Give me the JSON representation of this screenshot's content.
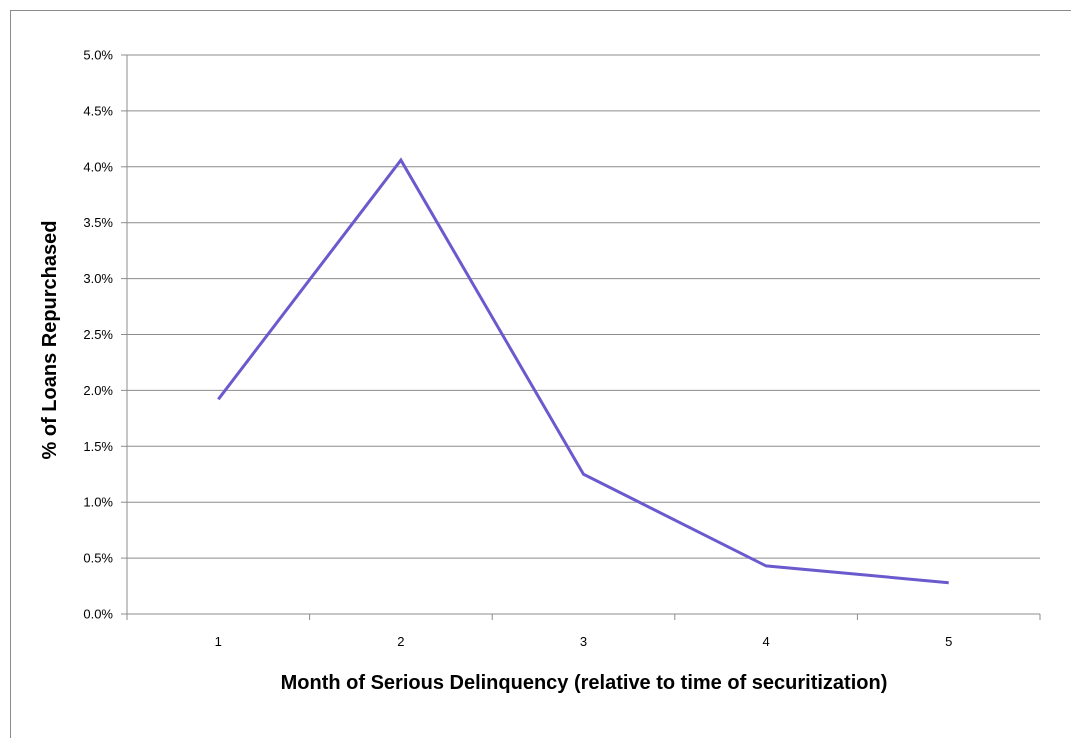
{
  "chart_data": {
    "type": "line",
    "title": "",
    "xlabel": "Month of Serious Delinquency (relative to time of securitization)",
    "ylabel": "% of Loans Repurchased",
    "categories": [
      "1",
      "2",
      "3",
      "4",
      "5"
    ],
    "series": [
      {
        "values": [
          1.92,
          4.06,
          1.25,
          0.43,
          0.28
        ]
      }
    ],
    "ylim": [
      0,
      5.0
    ],
    "yticks": [
      "0.0%",
      "0.5%",
      "1.0%",
      "1.5%",
      "2.0%",
      "2.5%",
      "3.0%",
      "3.5%",
      "4.0%",
      "4.5%",
      "5.0%"
    ],
    "grid": true,
    "legend": "none",
    "colors": {
      "line": "#6a5acd",
      "grid": "#8c8c8c",
      "axis": "#8c8c8c"
    }
  }
}
